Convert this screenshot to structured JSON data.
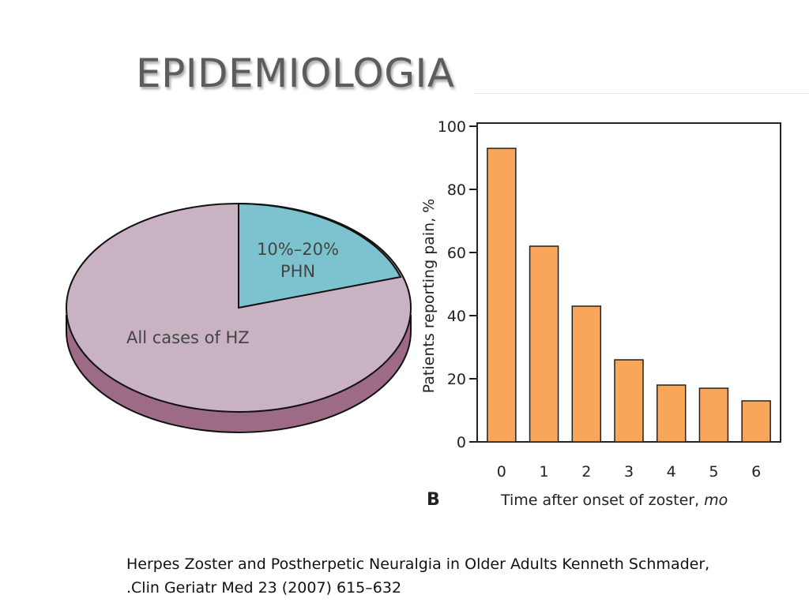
{
  "slide": {
    "title": "EPIDEMIOLOGIA",
    "citation_line1": "Herpes Zoster and Postherpetic Neuralgia in Older Adults Kenneth Schmader,",
    "citation_line2": ".Clin Geriatr Med 23 (2007) 615–632"
  },
  "pie": {
    "slice_large_label": "All cases of HZ",
    "slice_small_label_line1": "10%–20%",
    "slice_small_label_line2": "PHN",
    "colors": {
      "large": "#c9b3c3",
      "small": "#7cc3cf",
      "edge": "#9e6b87"
    }
  },
  "chart_data": {
    "type": "bar",
    "panel_label": "B",
    "categories": [
      "0",
      "1",
      "2",
      "3",
      "4",
      "5",
      "6"
    ],
    "values": [
      93,
      62,
      43,
      26,
      18,
      17,
      13
    ],
    "xlabel": "Time after onset of zoster, ",
    "xlabel_unit": "mo",
    "ylabel": "Patients reporting pain, %",
    "ylim": [
      0,
      100
    ],
    "yticks": [
      "0",
      "20",
      "40",
      "60",
      "80",
      "100"
    ],
    "bar_color": "#f9a65a"
  }
}
